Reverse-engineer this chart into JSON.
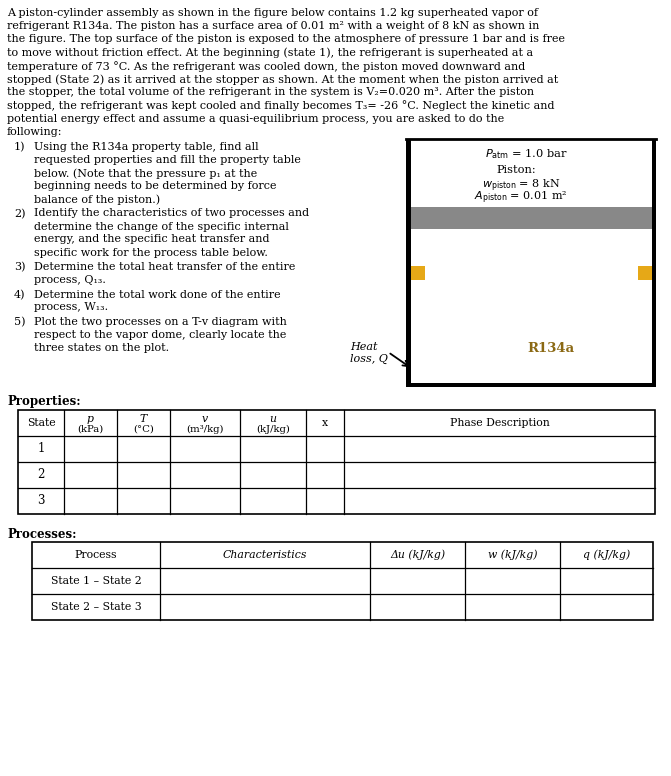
{
  "bg_color": "#ffffff",
  "para_lines": [
    "A piston-cylinder assembly as shown in the figure below contains 1.2 kg superheated vapor of",
    "refrigerant R134a. The piston has a surface area of 0.01 m² with a weight of 8 kN as shown in",
    "the figure. The top surface of the piston is exposed to the atmosphere of pressure 1 bar and is free",
    "to move without friction effect. At the beginning (state 1), the refrigerant is superheated at a",
    "temperature of 73 °C. As the refrigerant was cooled down, the piston moved downward and",
    "stopped (State 2) as it arrived at the stopper as shown. At the moment when the piston arrived at",
    "the stopper, the total volume of the refrigerant in the system is V₂=0.020 m³. After the piston",
    "stopped, the refrigerant was kept cooled and finally becomes T₃= -26 °C. Neglect the kinetic and",
    "potential energy effect and assume a quasi-equilibrium process, you are asked to do the",
    "following:"
  ],
  "item1_lines": [
    "Using the R134a property table, find all",
    "requested properties and fill the property table",
    "below. (Note that the pressure p₁ at the",
    "beginning needs to be determined by force",
    "balance of the piston.)"
  ],
  "item2_lines": [
    "Identify the characteristics of two processes and",
    "determine the change of the specific internal",
    "energy, and the specific heat transfer and",
    "specific work for the process table below."
  ],
  "item3_lines": [
    "Determine the total heat transfer of the entire",
    "process, Q₁₃."
  ],
  "item4_lines": [
    "Determine the total work done of the entire",
    "process, W₁₃."
  ],
  "item5_lines": [
    "Plot the two processes on a T-v diagram with",
    "respect to the vapor dome, clearly locate the",
    "three states on the plot."
  ],
  "prop_headers": [
    "State",
    "p\n(kPa)",
    "T\n(°C)",
    "v\n(m³/kg)",
    "u\n(kJ/kg)",
    "x",
    "Phase Description"
  ],
  "prop_rows": [
    "1",
    "2",
    "3"
  ],
  "proc_headers": [
    "Process",
    "Characteristics",
    "Δu (kJ/kg)",
    "w (kJ/kg)",
    "q (kJ/kg)"
  ],
  "proc_rows": [
    "State 1 – State 2",
    "State 2 – State 3"
  ],
  "piston_gray": "#888888",
  "stopper_color": "#E6A817",
  "r134a_color": "#8B6914"
}
